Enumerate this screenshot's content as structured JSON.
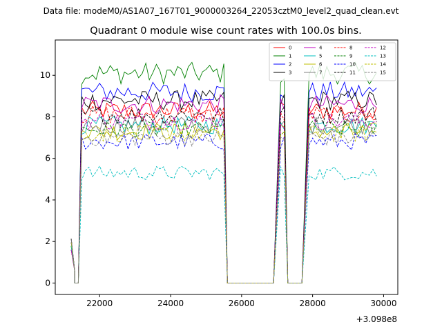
{
  "chart_data": {
    "type": "line",
    "suptitle": "Data file: modeM0/AS1A07_167T01_9000003264_22053cztM0_level2_quad_clean.evt",
    "title": "Quadrant 0 module wise count rates with 100.0s bins.",
    "xlabel": "",
    "ylabel": "",
    "x_offset_label": "+3.098e8",
    "xlim": [
      20750,
      30400
    ],
    "ylim": [
      -0.55,
      11.7
    ],
    "xticks": [
      22000,
      24000,
      26000,
      28000,
      30000
    ],
    "xtick_labels": [
      "22000",
      "24000",
      "26000",
      "28000",
      "30000"
    ],
    "yticks": [
      0,
      2,
      4,
      6,
      8,
      10
    ],
    "ytick_labels": [
      "0",
      "2",
      "4",
      "6",
      "8",
      "10"
    ],
    "legend_position": "top-right",
    "segments": [
      {
        "start": 21200,
        "end": 21300,
        "kind": "ramp_start"
      },
      {
        "start": 21300,
        "end": 21400,
        "kind": "zero"
      },
      {
        "start": 21500,
        "end": 25500,
        "kind": "on"
      },
      {
        "start": 25600,
        "end": 26900,
        "kind": "zero"
      },
      {
        "start": 27100,
        "end": 27200,
        "kind": "on"
      },
      {
        "start": 27300,
        "end": 27700,
        "kind": "zero"
      },
      {
        "start": 27900,
        "end": 29800,
        "kind": "on"
      }
    ],
    "series": [
      {
        "name": "0",
        "color": "#ff0000",
        "dash": "solid",
        "level": 8.3
      },
      {
        "name": "1",
        "color": "#008000",
        "dash": "solid",
        "level": 10.1
      },
      {
        "name": "2",
        "color": "#0000ff",
        "dash": "solid",
        "level": 9.2
      },
      {
        "name": "3",
        "color": "#000000",
        "dash": "solid",
        "level": 8.8
      },
      {
        "name": "4",
        "color": "#bf00bf",
        "dash": "solid",
        "level": 8.6
      },
      {
        "name": "5",
        "color": "#00bfbf",
        "dash": "solid",
        "level": 7.6
      },
      {
        "name": "6",
        "color": "#bfbf00",
        "dash": "solid",
        "level": 7.3
      },
      {
        "name": "7",
        "color": "#808080",
        "dash": "solid",
        "level": 7.6
      },
      {
        "name": "8",
        "color": "#ff0000",
        "dash": "dashed",
        "level": 8.1
      },
      {
        "name": "9",
        "color": "#008000",
        "dash": "dashed",
        "level": 7.4
      },
      {
        "name": "10",
        "color": "#0000ff",
        "dash": "dashed",
        "level": 6.8
      },
      {
        "name": "11",
        "color": "#000000",
        "dash": "dashed",
        "level": 8.1
      },
      {
        "name": "12",
        "color": "#bf00bf",
        "dash": "dashed",
        "level": 7.8
      },
      {
        "name": "13",
        "color": "#00bfbf",
        "dash": "dashed",
        "level": 5.3
      },
      {
        "name": "14",
        "color": "#bfbf00",
        "dash": "dashed",
        "level": 7.2
      },
      {
        "name": "15",
        "color": "#808080",
        "dash": "dashed",
        "level": 7.0
      }
    ]
  }
}
